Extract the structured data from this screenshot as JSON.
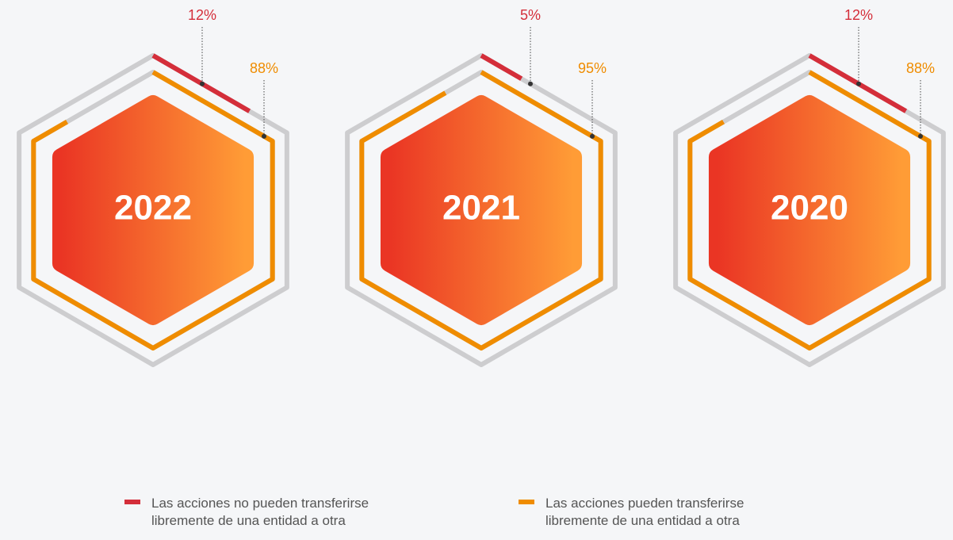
{
  "chart_data": {
    "type": "hexagon",
    "categories": [
      "2022",
      "2021",
      "2020"
    ],
    "series": [
      {
        "name": "Las acciones no pueden transferirse libremente de una entidad a otra",
        "color": "#d42e3a",
        "values": [
          12,
          5,
          12
        ],
        "value_labels": [
          "12%",
          "5%",
          "12%"
        ]
      },
      {
        "name": "Las acciones pueden transferirse libremente de una entidad a otra",
        "color": "#ef8c00",
        "values": [
          88,
          95,
          88
        ],
        "value_labels": [
          "88%",
          "95%",
          "88%"
        ]
      }
    ]
  }
}
